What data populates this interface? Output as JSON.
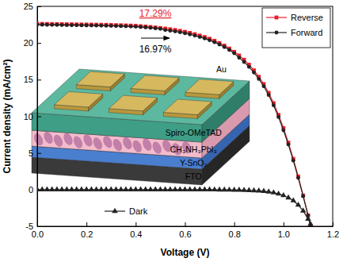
{
  "chart_data": {
    "type": "line",
    "xlabel": "Voltage (V)",
    "ylabel": "Current density (mA/cm²)",
    "xlim": [
      0,
      1.2
    ],
    "ylim": [
      -5,
      25
    ],
    "xticks": [
      {
        "value": 0,
        "label": "0.0"
      },
      0.2,
      0.4,
      0.6,
      0.8,
      {
        "value": 1,
        "label": "1.0"
      },
      1.2
    ],
    "yticks": [
      -5,
      0,
      5,
      10,
      15,
      20,
      25
    ],
    "legend": "upper right",
    "x": [
      0,
      0.02,
      0.04,
      0.06,
      0.08,
      0.1,
      0.12,
      0.14,
      0.16,
      0.18,
      0.2,
      0.22,
      0.24,
      0.26,
      0.28,
      0.3,
      0.32,
      0.34,
      0.36,
      0.38,
      0.4,
      0.42,
      0.44,
      0.46,
      0.48,
      0.5,
      0.52,
      0.54,
      0.56,
      0.58,
      0.6,
      0.62,
      0.64,
      0.66,
      0.68,
      0.7,
      0.72,
      0.74,
      0.76,
      0.78,
      0.8,
      0.82,
      0.84,
      0.86,
      0.88,
      0.9,
      0.92,
      0.94,
      0.96,
      0.98,
      1.0,
      1.02,
      1.04,
      1.06,
      1.08,
      1.1,
      1.11
    ],
    "series": [
      {
        "name": "Reverse",
        "color": "#e8202a",
        "marker": "square",
        "values": [
          22.62,
          22.61,
          22.6,
          22.59,
          22.58,
          22.57,
          22.56,
          22.55,
          22.54,
          22.53,
          22.52,
          22.51,
          22.5,
          22.49,
          22.48,
          22.46,
          22.44,
          22.42,
          22.4,
          22.38,
          22.35,
          22.3,
          22.25,
          22.19,
          22.12,
          22.05,
          21.97,
          21.88,
          21.78,
          21.66,
          21.53,
          21.38,
          21.21,
          21.02,
          20.82,
          20.58,
          20.31,
          20.0,
          19.65,
          19.25,
          18.8,
          18.3,
          17.72,
          17.05,
          16.28,
          15.4,
          14.4,
          13.2,
          11.8,
          10.2,
          8.4,
          6.4,
          4.2,
          1.8,
          -0.8,
          -3.5,
          -4.9
        ]
      },
      {
        "name": "Forward",
        "color": "#222222",
        "marker": "circle",
        "values": [
          22.5,
          22.49,
          22.48,
          22.47,
          22.46,
          22.45,
          22.44,
          22.43,
          22.42,
          22.41,
          22.4,
          22.39,
          22.38,
          22.37,
          22.36,
          22.34,
          22.32,
          22.3,
          22.28,
          22.26,
          22.23,
          22.18,
          22.13,
          22.07,
          22.0,
          21.93,
          21.77,
          21.68,
          21.58,
          21.46,
          21.33,
          21.18,
          21.01,
          20.82,
          20.62,
          20.38,
          20.11,
          19.8,
          19.45,
          19.05,
          18.6,
          18.0,
          17.42,
          16.75,
          15.98,
          15.1,
          14.1,
          12.9,
          11.5,
          9.9,
          8.1,
          6.15,
          3.95,
          1.6,
          -0.9,
          -3.55,
          -4.9
        ]
      },
      {
        "name": "Dark",
        "color": "#222222",
        "marker": "triangle",
        "values": [
          0,
          0,
          0,
          0,
          0,
          0,
          0,
          0,
          0,
          0,
          0,
          0,
          0,
          0,
          0,
          0,
          0,
          0,
          0,
          0,
          0,
          0,
          0,
          0,
          0,
          0,
          0,
          0,
          0,
          0,
          0,
          0,
          0,
          0,
          0,
          0,
          -0.01,
          -0.02,
          -0.03,
          -0.04,
          -0.05,
          -0.06,
          -0.08,
          -0.1,
          -0.13,
          -0.17,
          -0.22,
          -0.3,
          -0.42,
          -0.58,
          -0.8,
          -1.1,
          -1.5,
          -2.1,
          -2.9,
          -4.0,
          -4.7
        ]
      }
    ],
    "annotations": [
      {
        "text": "17.29%",
        "color": "#e8202a"
      },
      {
        "text": "16.97%",
        "color": "#000000"
      }
    ],
    "inset": {
      "layers": [
        "Au",
        "Spiro-OMeTAD",
        "CH₃NH₃PbI₃",
        "Y-SnO₂",
        "FTO"
      ]
    }
  }
}
